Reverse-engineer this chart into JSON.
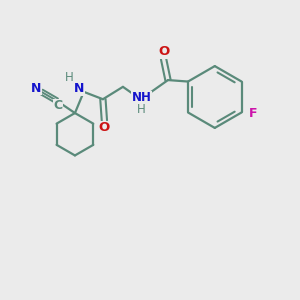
{
  "background_color": "#ebebeb",
  "bond_color": "#5a8a7a",
  "figsize": [
    3.0,
    3.0
  ],
  "dpi": 100,
  "atom_colors": {
    "N": "#1414cc",
    "O": "#cc1414",
    "F": "#cc14aa",
    "C": "#5a8a7a",
    "H": "#5a8a7a"
  },
  "xlim": [
    0,
    10
  ],
  "ylim": [
    0,
    10
  ]
}
